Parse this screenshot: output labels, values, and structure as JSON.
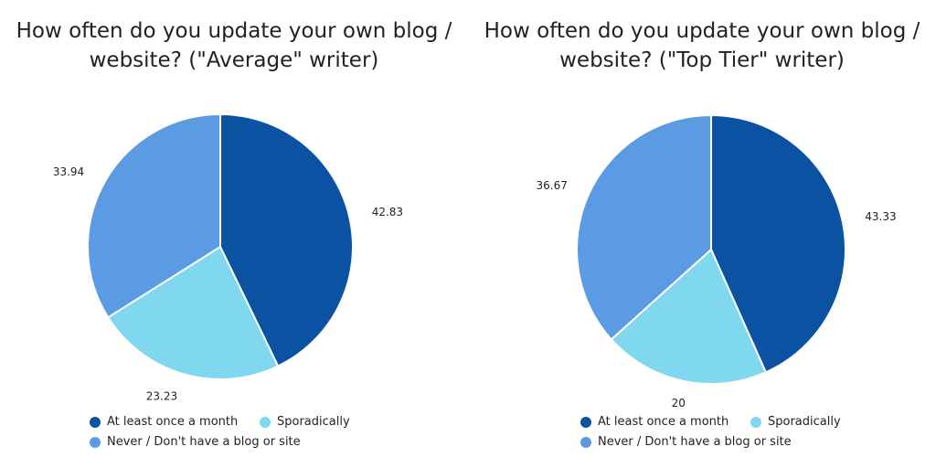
{
  "chart_data": [
    {
      "type": "pie",
      "title_lines": [
        "How often do you update your own blog /",
        "website? (\"Average\" writer)"
      ],
      "categories": [
        "At least once a month",
        "Sporadically",
        "Never / Don't have a blog or site"
      ],
      "values": [
        42.83,
        23.23,
        33.94
      ],
      "labels": [
        "42.83",
        "23.23",
        "33.94"
      ],
      "colors": [
        "#0b52a3",
        "#7fd8f0",
        "#5b9be3"
      ],
      "legend_position": "bottom"
    },
    {
      "type": "pie",
      "title_lines": [
        "How often do you update your own blog /",
        "website? (\"Top Tier\" writer)"
      ],
      "categories": [
        "At least once a month",
        "Sporadically",
        "Never / Don't have a blog or site"
      ],
      "values": [
        43.33,
        20,
        36.67
      ],
      "labels": [
        "43.33",
        "20",
        "36.67"
      ],
      "colors": [
        "#0b52a3",
        "#7fd8f0",
        "#5b9be3"
      ],
      "legend_position": "bottom"
    }
  ]
}
